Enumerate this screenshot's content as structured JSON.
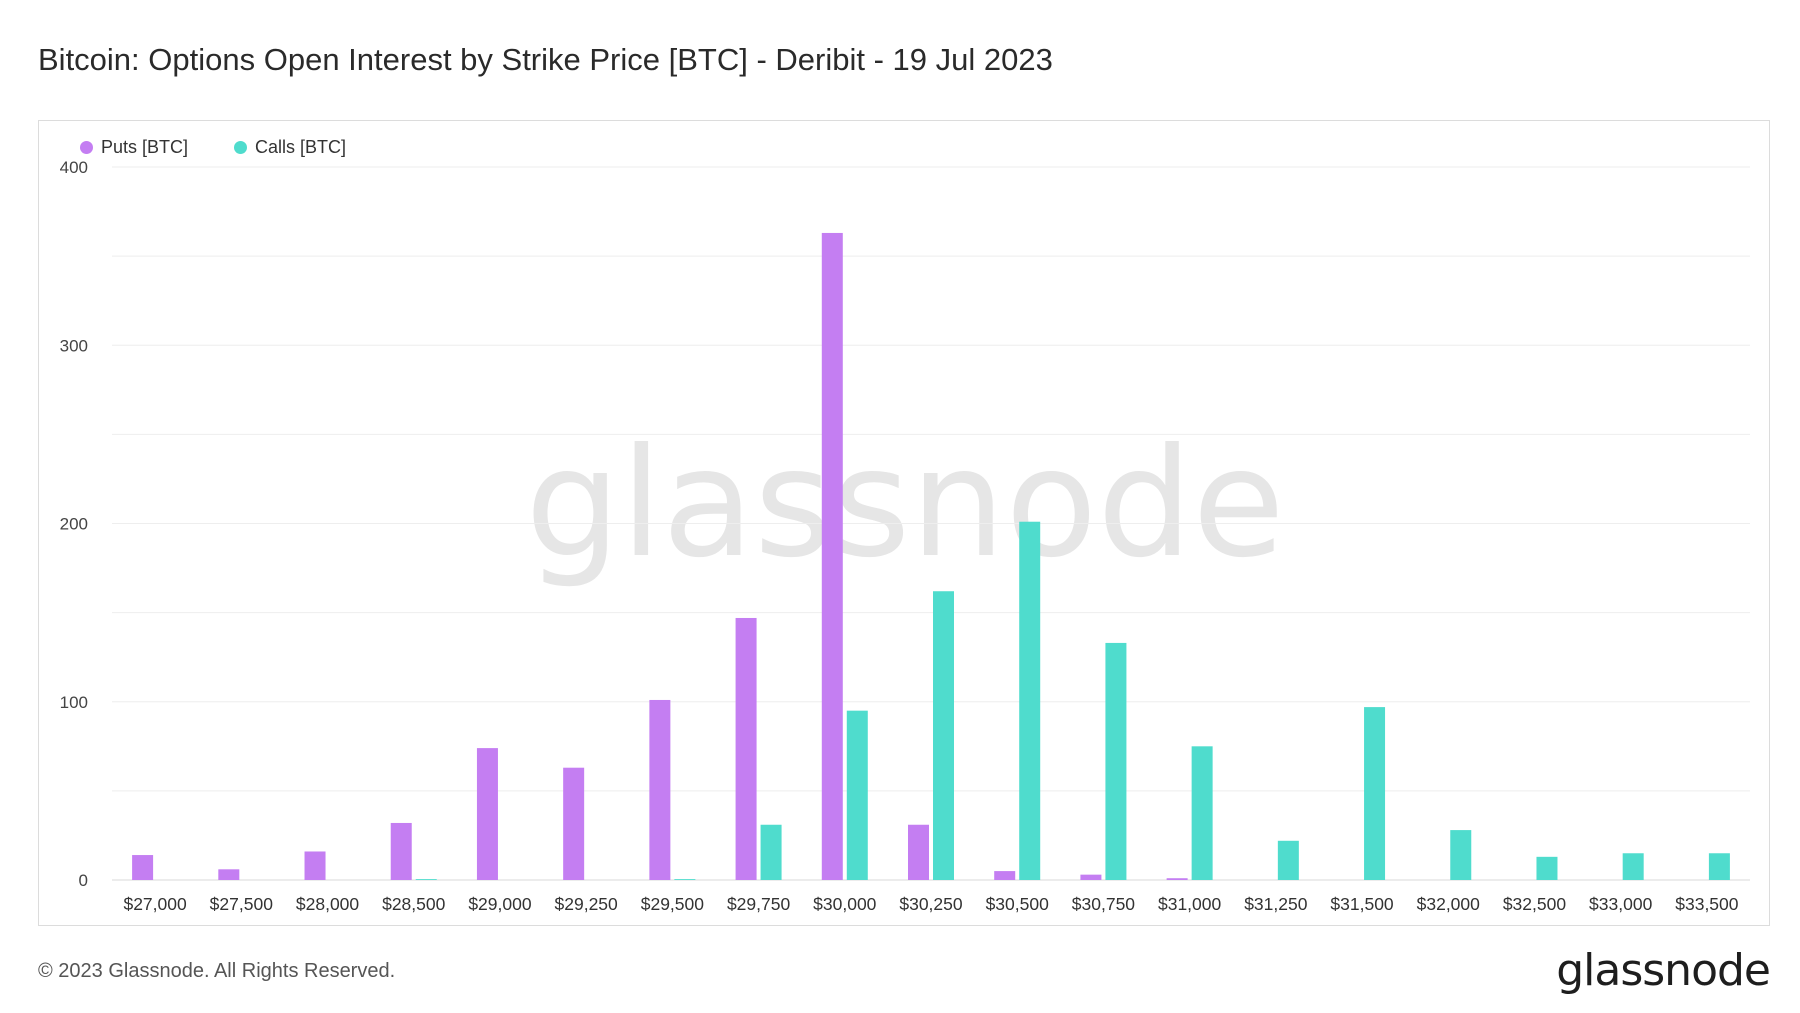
{
  "title": "Bitcoin: Options Open Interest by Strike Price [BTC] - Deribit - 19 Jul 2023",
  "watermark": "glassnode",
  "footer": {
    "copyright": "© 2023 Glassnode. All Rights Reserved.",
    "brand": "glassnode"
  },
  "colors": {
    "puts": "#c47ef2",
    "calls": "#4fdccd",
    "grid": "#eeeeee",
    "axis_text": "#444444"
  },
  "chart_data": {
    "type": "bar",
    "title": "Bitcoin: Options Open Interest by Strike Price [BTC] - Deribit - 19 Jul 2023",
    "xlabel": "",
    "ylabel": "",
    "ylim": [
      0,
      400
    ],
    "yticks": [
      0,
      100,
      200,
      300,
      400
    ],
    "grid": true,
    "legend_position": "top-left",
    "categories": [
      "$27,000",
      "$27,500",
      "$28,000",
      "$28,500",
      "$29,000",
      "$29,250",
      "$29,500",
      "$29,750",
      "$30,000",
      "$30,250",
      "$30,500",
      "$30,750",
      "$31,000",
      "$31,250",
      "$31,500",
      "$32,000",
      "$32,500",
      "$33,000",
      "$33,500"
    ],
    "series": [
      {
        "name": "Puts [BTC]",
        "values": [
          14,
          6,
          16,
          32,
          74,
          63,
          101,
          147,
          363,
          31,
          5,
          3,
          1,
          0,
          0,
          0,
          0,
          0,
          0
        ]
      },
      {
        "name": "Calls [BTC]",
        "values": [
          0,
          0,
          0,
          0.5,
          0,
          0,
          0.5,
          31,
          95,
          162,
          201,
          133,
          75,
          22,
          97,
          28,
          13,
          15,
          15
        ]
      }
    ]
  }
}
